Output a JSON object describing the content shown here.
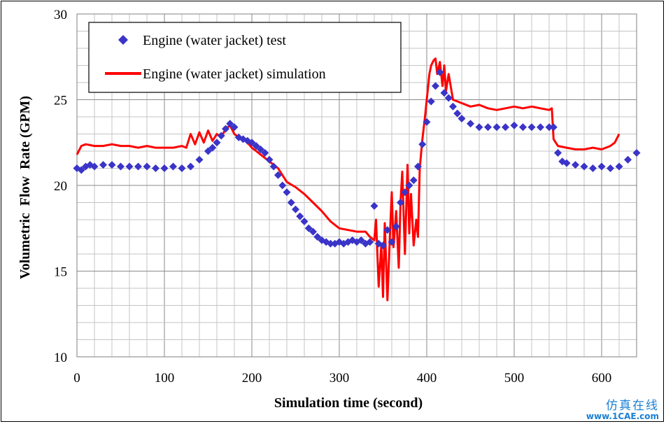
{
  "chart_data": {
    "type": "line",
    "title": "",
    "xlabel": "Simulation time (second)",
    "ylabel": "Volumetric  Flow  Rate (GPM)",
    "xlim": [
      0,
      640
    ],
    "ylim": [
      10,
      30
    ],
    "x_ticks": [
      "0",
      "100",
      "200",
      "300",
      "400",
      "500",
      "600"
    ],
    "y_ticks": [
      "10",
      "15",
      "20",
      "25",
      "30"
    ],
    "grid": true,
    "legend_position": "top-left",
    "series": [
      {
        "name": "Engine (water jacket) test",
        "marker": "diamond",
        "color": "#3a34c8",
        "x": [
          0,
          5,
          10,
          15,
          20,
          30,
          40,
          50,
          60,
          70,
          80,
          90,
          100,
          110,
          120,
          130,
          140,
          150,
          155,
          160,
          165,
          170,
          175,
          180,
          185,
          190,
          195,
          200,
          205,
          210,
          215,
          220,
          225,
          230,
          235,
          240,
          245,
          250,
          255,
          260,
          265,
          270,
          275,
          280,
          285,
          290,
          295,
          300,
          305,
          310,
          315,
          320,
          325,
          330,
          335,
          340,
          345,
          350,
          355,
          360,
          365,
          370,
          375,
          380,
          385,
          390,
          395,
          400,
          405,
          410,
          415,
          420,
          425,
          430,
          435,
          440,
          450,
          460,
          470,
          480,
          490,
          500,
          510,
          520,
          530,
          540,
          545,
          550,
          555,
          560,
          570,
          580,
          590,
          600,
          610,
          620,
          630,
          640
        ],
        "y": [
          21.0,
          20.9,
          21.1,
          21.2,
          21.1,
          21.2,
          21.2,
          21.1,
          21.1,
          21.1,
          21.1,
          21.0,
          21.0,
          21.1,
          21.0,
          21.1,
          21.5,
          22.0,
          22.2,
          22.5,
          22.9,
          23.3,
          23.6,
          23.4,
          22.8,
          22.7,
          22.6,
          22.5,
          22.3,
          22.1,
          21.9,
          21.5,
          21.1,
          20.6,
          20.0,
          19.6,
          19.0,
          18.6,
          18.2,
          17.9,
          17.5,
          17.3,
          17.0,
          16.8,
          16.7,
          16.6,
          16.6,
          16.7,
          16.6,
          16.7,
          16.8,
          16.7,
          16.8,
          16.6,
          16.7,
          18.8,
          16.6,
          16.5,
          17.4,
          16.7,
          17.6,
          19.0,
          19.6,
          20.0,
          20.3,
          21.1,
          22.4,
          23.7,
          24.9,
          25.8,
          26.6,
          25.4,
          25.1,
          24.6,
          24.2,
          23.9,
          23.6,
          23.4,
          23.4,
          23.4,
          23.4,
          23.5,
          23.4,
          23.4,
          23.4,
          23.4,
          23.4,
          21.9,
          21.4,
          21.3,
          21.2,
          21.1,
          21.0,
          21.1,
          21.0,
          21.1,
          21.5,
          21.9
        ]
      },
      {
        "name": "Engine (water jacket) simulation",
        "marker": "line",
        "color": "#ff0000",
        "x": [
          0,
          5,
          10,
          20,
          30,
          40,
          50,
          60,
          70,
          80,
          90,
          100,
          110,
          120,
          125,
          130,
          135,
          140,
          145,
          150,
          155,
          160,
          165,
          170,
          175,
          180,
          185,
          190,
          195,
          200,
          205,
          210,
          220,
          230,
          240,
          250,
          260,
          270,
          280,
          290,
          300,
          310,
          320,
          330,
          335,
          340,
          342,
          345,
          348,
          350,
          352,
          355,
          358,
          360,
          362,
          365,
          368,
          370,
          372,
          375,
          378,
          380,
          382,
          385,
          388,
          390,
          392,
          395,
          398,
          400,
          403,
          405,
          408,
          410,
          412,
          415,
          418,
          420,
          422,
          425,
          430,
          440,
          450,
          460,
          470,
          480,
          490,
          500,
          510,
          520,
          530,
          540,
          543,
          545,
          550,
          560,
          570,
          580,
          590,
          600,
          610,
          615,
          620
        ],
        "y": [
          21.8,
          22.3,
          22.4,
          22.3,
          22.3,
          22.4,
          22.3,
          22.3,
          22.2,
          22.3,
          22.2,
          22.2,
          22.2,
          22.3,
          22.2,
          23.0,
          22.4,
          23.1,
          22.5,
          23.2,
          22.6,
          23.0,
          22.8,
          23.3,
          23.5,
          23.0,
          22.8,
          22.7,
          22.5,
          22.2,
          22.0,
          21.8,
          21.4,
          21.0,
          20.2,
          19.9,
          19.5,
          19.0,
          18.5,
          17.9,
          17.5,
          17.4,
          17.3,
          17.3,
          17.0,
          16.8,
          18.0,
          14.1,
          16.5,
          13.5,
          17.8,
          13.3,
          17.2,
          19.6,
          16.4,
          18.5,
          15.2,
          19.0,
          20.8,
          16.0,
          21.2,
          17.2,
          19.5,
          16.5,
          18.0,
          17.0,
          21.0,
          22.7,
          24.0,
          25.0,
          26.5,
          27.0,
          27.3,
          27.4,
          26.5,
          27.2,
          25.8,
          27.0,
          25.5,
          26.5,
          25.0,
          24.8,
          24.6,
          24.7,
          24.5,
          24.4,
          24.5,
          24.6,
          24.5,
          24.6,
          24.5,
          24.4,
          24.5,
          22.7,
          22.3,
          22.2,
          22.1,
          22.1,
          22.2,
          22.1,
          22.3,
          22.5,
          23.0
        ]
      }
    ]
  },
  "watermark": {
    "chinese": "仿真在线",
    "url": "www.1CAE.com"
  }
}
